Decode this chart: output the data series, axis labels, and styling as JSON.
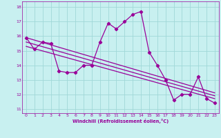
{
  "title": "",
  "xlabel": "Windchill (Refroidissement éolien,°C)",
  "ylabel": "",
  "bg_color": "#c8f0f0",
  "line_color": "#990099",
  "grid_color": "#a0d8d8",
  "xlim": [
    -0.5,
    23.5
  ],
  "ylim": [
    10.7,
    18.4
  ],
  "yticks": [
    11,
    12,
    13,
    14,
    15,
    16,
    17,
    18
  ],
  "xticks": [
    0,
    1,
    2,
    3,
    4,
    5,
    6,
    7,
    8,
    9,
    10,
    11,
    12,
    13,
    14,
    15,
    16,
    17,
    18,
    19,
    20,
    21,
    22,
    23
  ],
  "main_data": {
    "x": [
      0,
      1,
      2,
      3,
      4,
      5,
      6,
      7,
      8,
      9,
      10,
      11,
      12,
      13,
      14,
      15,
      16,
      17,
      18,
      19,
      20,
      21,
      22,
      23
    ],
    "y": [
      15.9,
      15.1,
      15.6,
      15.5,
      13.6,
      13.5,
      13.5,
      14.0,
      14.0,
      15.6,
      16.9,
      16.5,
      17.0,
      17.5,
      17.7,
      14.9,
      14.0,
      13.0,
      11.6,
      12.0,
      12.0,
      13.2,
      11.7,
      11.4
    ]
  },
  "reg_lines": [
    {
      "x": [
        0,
        23
      ],
      "y": [
        15.9,
        12.1
      ]
    },
    {
      "x": [
        0,
        23
      ],
      "y": [
        15.6,
        11.9
      ]
    },
    {
      "x": [
        0,
        23
      ],
      "y": [
        15.3,
        11.7
      ]
    }
  ],
  "marker": "D",
  "markersize": 2.2,
  "linewidth": 0.9
}
